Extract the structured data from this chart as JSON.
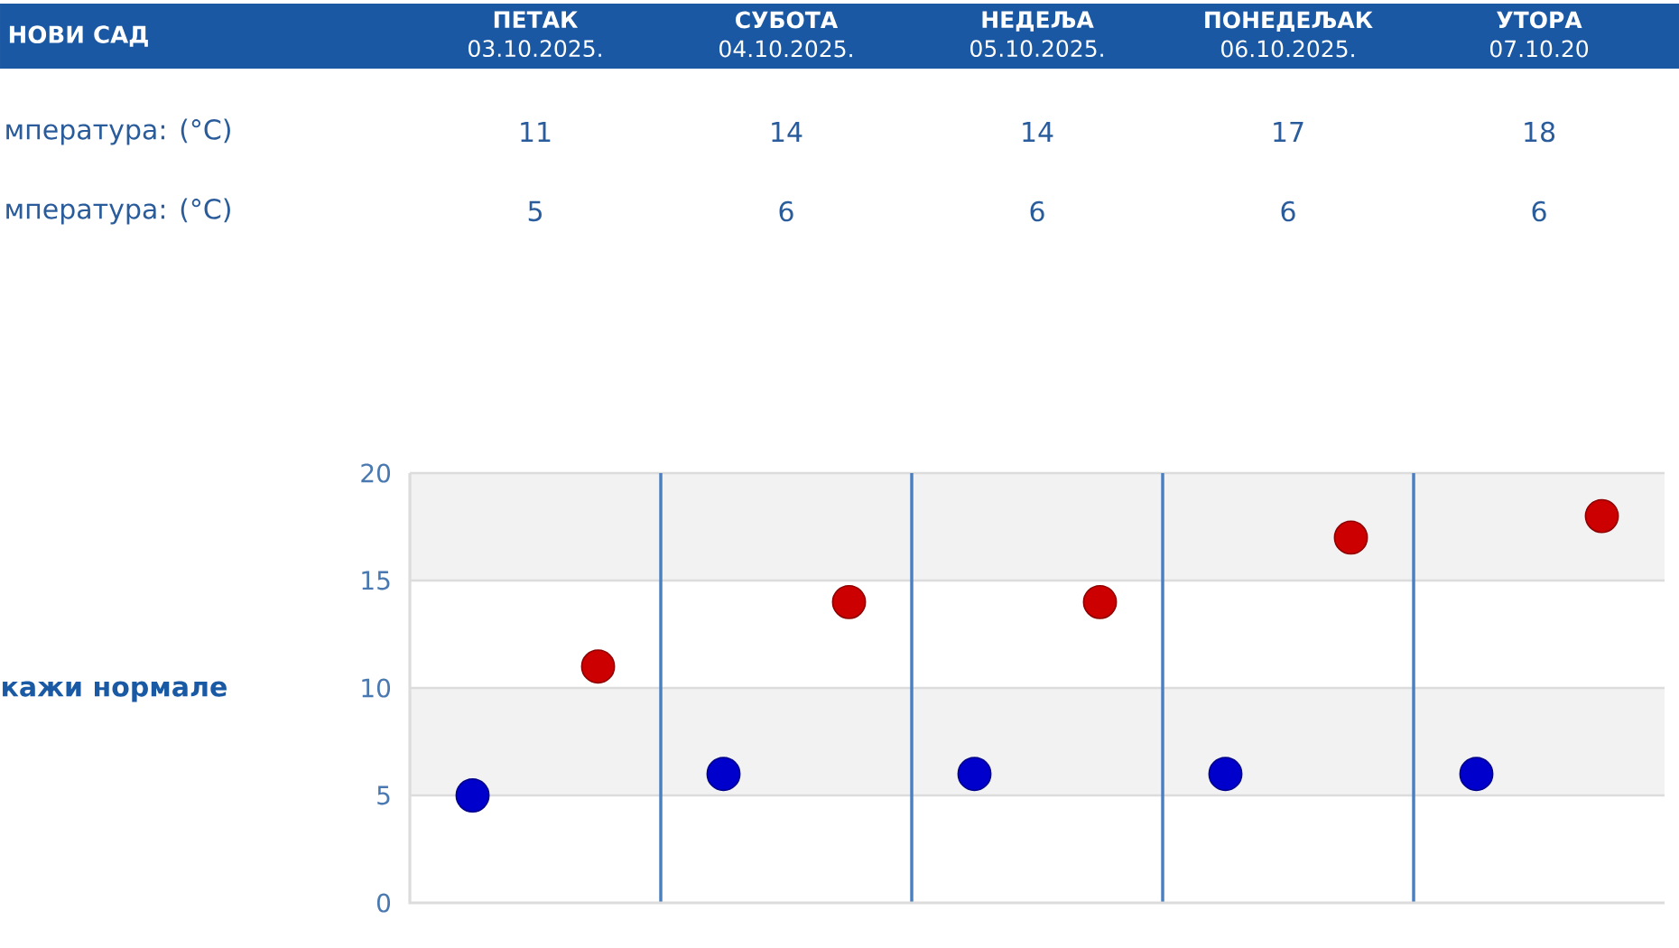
{
  "chart_data": {
    "type": "scatter",
    "title": "НОВИ САД",
    "categories": [
      null,
      null,
      null,
      null,
      null
    ],
    "series": [
      {
        "color": "#cc0000",
        "values": [
          11,
          14,
          14,
          17,
          18
        ]
      },
      {
        "color": "#0000cc",
        "values": [
          5,
          6,
          6,
          6,
          6
        ]
      }
    ],
    "ylim": [
      0,
      20
    ],
    "yticks": [
      0,
      5,
      10,
      15,
      20
    ],
    "grid": true,
    "marker": "circle",
    "data_labels": true,
    "bands": [
      {
        "axis": "y",
        "from": 15,
        "to": 20,
        "color": "#f2f2f2"
      },
      {
        "axis": "y",
        "from": 5,
        "to": 10,
        "color": "#f2f2f2"
      }
    ],
    "annotations": [
      "**ПЕТАК** 03.10.2025.",
      "**СУБОТА** 04.10.2025.",
      "**НЕДЕЉА** 05.10.2025.",
      "**ПОНЕДЕЉАК** 06.10.2025.",
      "**УТОРА** 07.10.20",
      "мпература: (°C)",
      "мпература: (°C)",
      "кажи нормале"
    ]
  }
}
